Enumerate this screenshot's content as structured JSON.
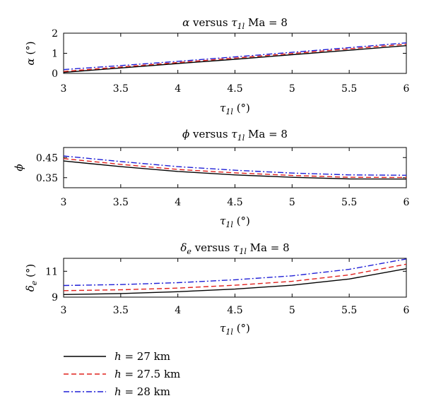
{
  "chart_data": [
    {
      "type": "line",
      "title": "α versus τ1l Ma = 8",
      "title_parts": {
        "sym": "α",
        "mid": " versus ",
        "tau": "τ",
        "sub": "1l",
        "tail": " Ma = 8"
      },
      "xlabel": "τ1l (°)",
      "ylabel": "α (°)",
      "ylabel_parts": {
        "sym": "α",
        "sub": "",
        "unit": " (°)"
      },
      "xlim": [
        3,
        6
      ],
      "ylim": [
        0,
        2
      ],
      "xticks": [
        "3",
        "3.5",
        "4",
        "4.5",
        "5",
        "5.5",
        "6"
      ],
      "yticks": [
        "0",
        "1",
        "2"
      ],
      "x": [
        3,
        3.5,
        4,
        4.5,
        5,
        5.5,
        6
      ],
      "series": [
        {
          "name": "h = 27 km",
          "values": [
            0.05,
            0.27,
            0.49,
            0.7,
            0.93,
            1.15,
            1.38
          ]
        },
        {
          "name": "h = 27.5 km",
          "values": [
            0.1,
            0.32,
            0.54,
            0.76,
            0.99,
            1.22,
            1.45
          ]
        },
        {
          "name": "h = 28 km",
          "values": [
            0.19,
            0.39,
            0.6,
            0.82,
            1.05,
            1.28,
            1.52
          ]
        }
      ]
    },
    {
      "type": "line",
      "title": "ϕ versus τ1l Ma = 8",
      "title_parts": {
        "sym": "ϕ",
        "mid": " versus ",
        "tau": "τ",
        "sub": "1l",
        "tail": " Ma = 8"
      },
      "xlabel": "τ1l (°)",
      "ylabel": "ϕ",
      "ylabel_parts": {
        "sym": "ϕ",
        "sub": "",
        "unit": ""
      },
      "xlim": [
        3,
        6
      ],
      "ylim": [
        0.3,
        0.5
      ],
      "xticks": [
        "3",
        "3.5",
        "4",
        "4.5",
        "5",
        "5.5",
        "6"
      ],
      "yticks": [
        "0.35",
        "0.45"
      ],
      "ytick_values": [
        0.35,
        0.45
      ],
      "x": [
        3,
        3.5,
        4,
        4.5,
        5,
        5.5,
        6
      ],
      "series": [
        {
          "name": "h = 27 km",
          "values": [
            0.433,
            0.405,
            0.381,
            0.364,
            0.352,
            0.344,
            0.343
          ]
        },
        {
          "name": "h = 27.5 km",
          "values": [
            0.445,
            0.416,
            0.391,
            0.374,
            0.361,
            0.352,
            0.351
          ]
        },
        {
          "name": "h = 28 km",
          "values": [
            0.458,
            0.43,
            0.405,
            0.387,
            0.373,
            0.364,
            0.362
          ]
        }
      ]
    },
    {
      "type": "line",
      "title": "δe versus τ1l Ma = 8",
      "title_parts": {
        "sym": "δ",
        "symsub": "e",
        "mid": " versus ",
        "tau": "τ",
        "sub": "1l",
        "tail": " Ma = 8"
      },
      "xlabel": "τ1l (°)",
      "ylabel": "δe (°)",
      "ylabel_parts": {
        "sym": "δ",
        "sub": "e",
        "unit": " (°)"
      },
      "xlim": [
        3,
        6
      ],
      "ylim": [
        9,
        12
      ],
      "xticks": [
        "3",
        "3.5",
        "4",
        "4.5",
        "5",
        "5.5",
        "6"
      ],
      "yticks": [
        "9",
        "11"
      ],
      "ytick_values": [
        9,
        11
      ],
      "x": [
        3,
        3.5,
        4,
        4.5,
        5,
        5.5,
        6
      ],
      "series": [
        {
          "name": "h = 27 km",
          "values": [
            9.2,
            9.28,
            9.42,
            9.62,
            9.92,
            10.4,
            11.2
          ]
        },
        {
          "name": "h = 27.5 km",
          "values": [
            9.5,
            9.57,
            9.7,
            9.92,
            10.22,
            10.72,
            11.55
          ]
        },
        {
          "name": "h = 28 km",
          "values": [
            9.9,
            9.97,
            10.12,
            10.34,
            10.65,
            11.15,
            11.95
          ]
        }
      ]
    }
  ],
  "legend": [
    {
      "label": "h = 27 km",
      "color": "#000000",
      "dash": "solid"
    },
    {
      "label": "h = 27.5 km",
      "color": "#e0201c",
      "dash": "dashed"
    },
    {
      "label": "h = 28 km",
      "color": "#1f1fd6",
      "dash": "dashdot"
    }
  ],
  "degree_symbol": "(°)"
}
